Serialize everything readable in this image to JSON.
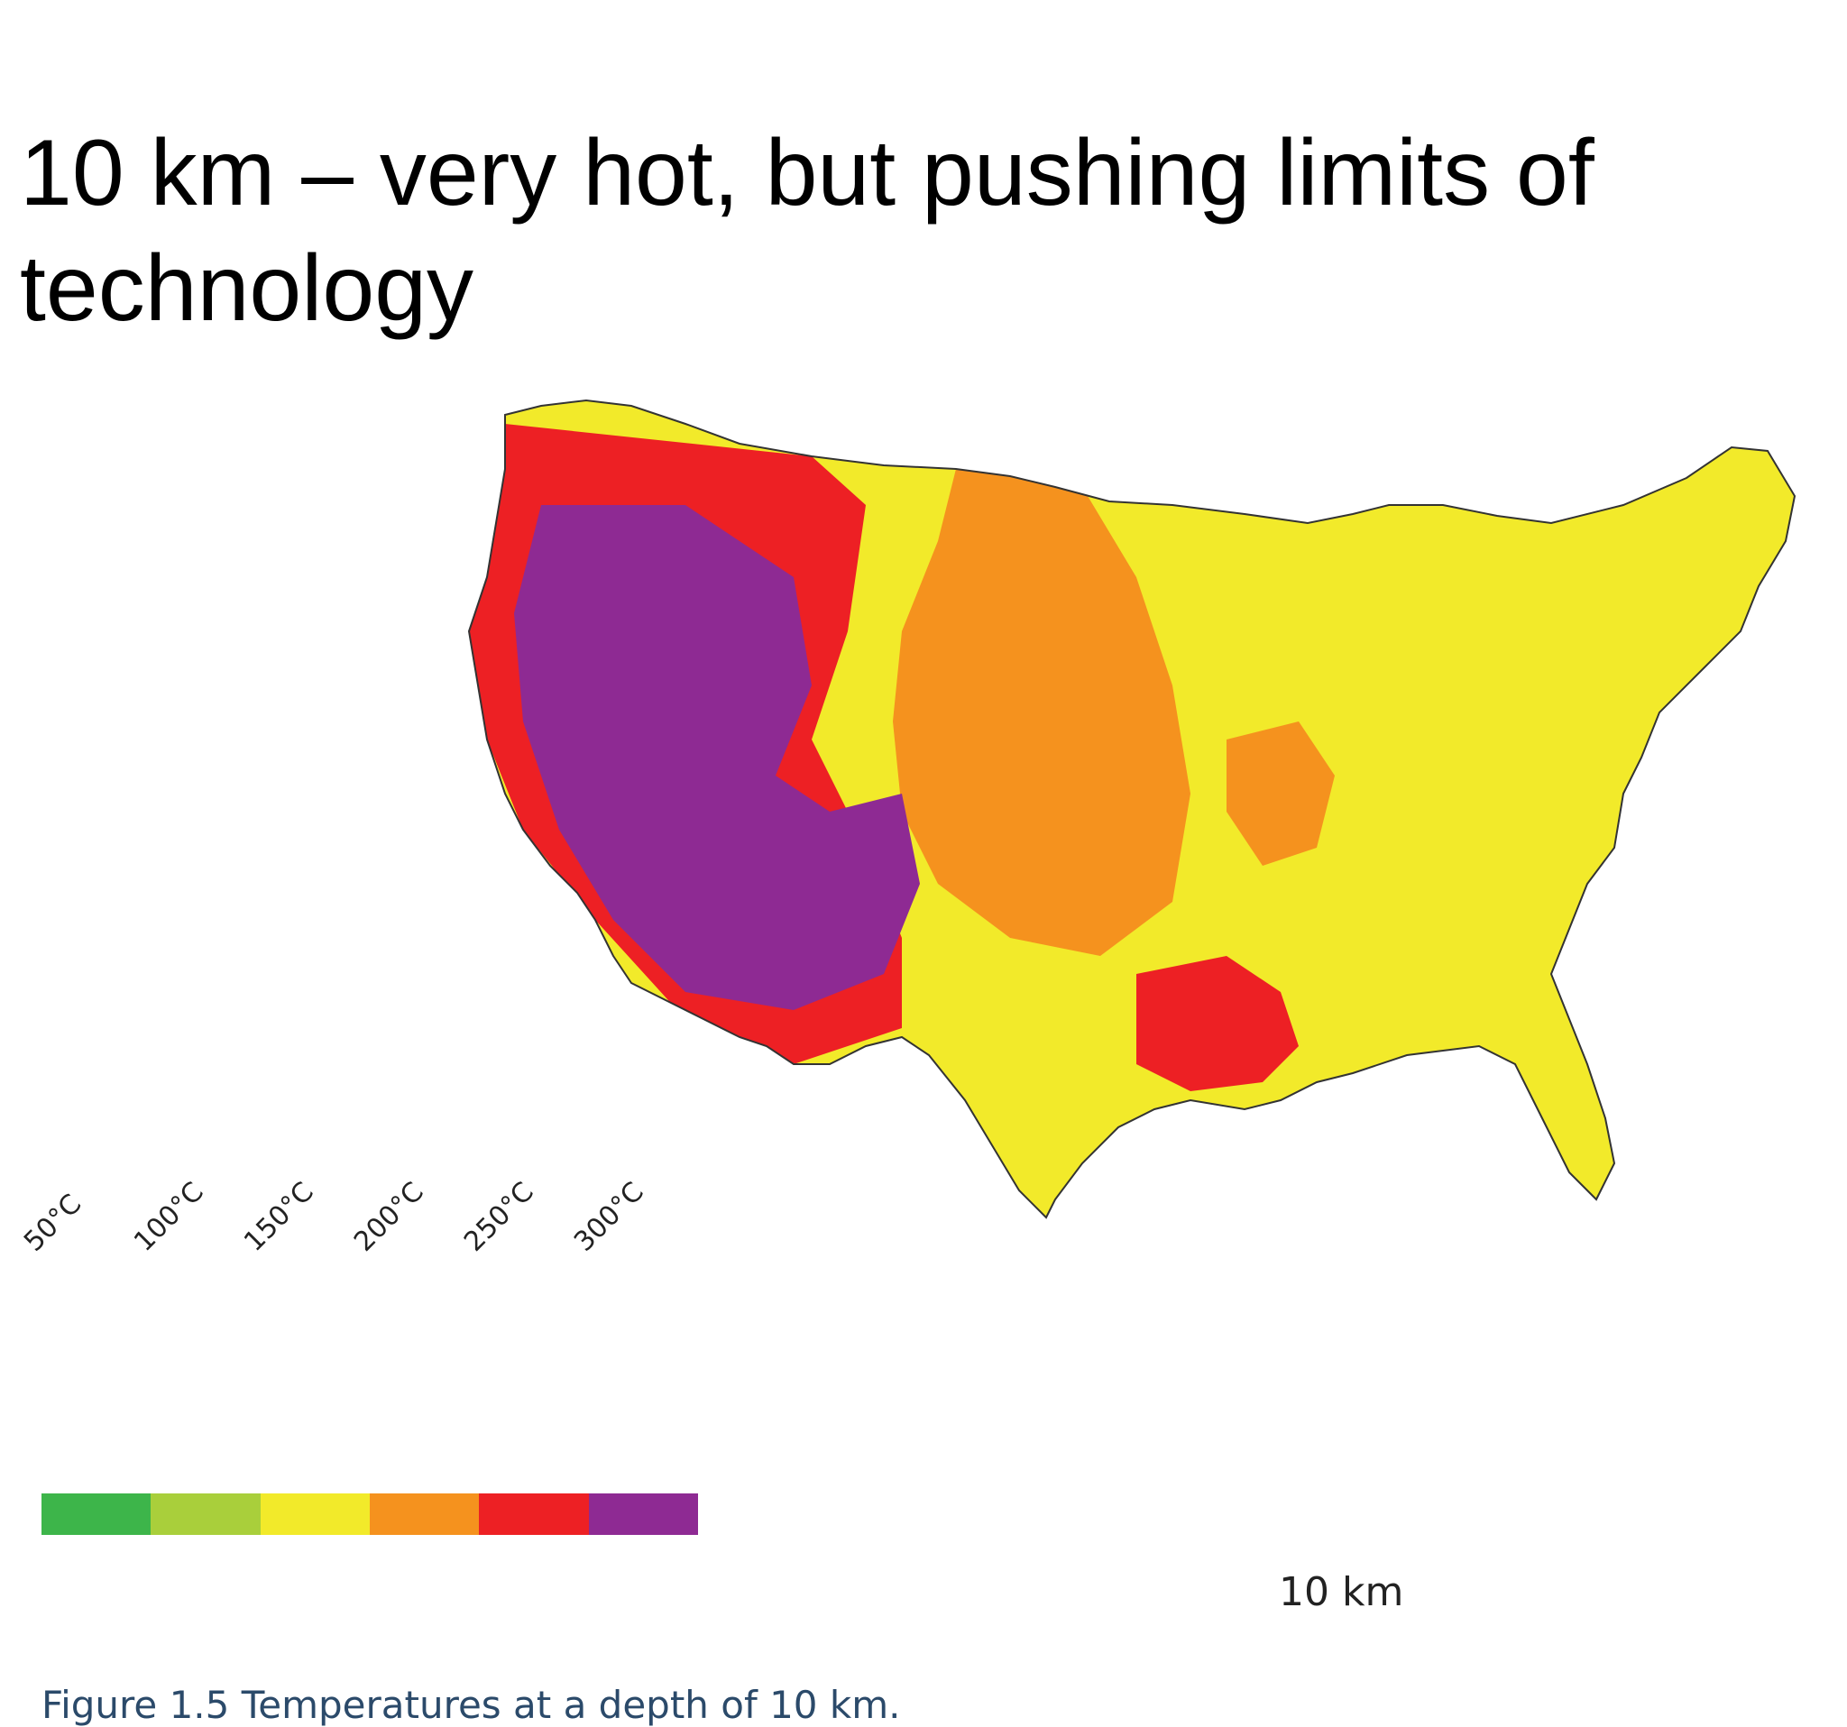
{
  "slide": {
    "title": "10 km – very hot, but pushing limits of technology"
  },
  "map": {
    "region": "contiguous United States",
    "depth_label": "10 km",
    "caption": "Figure 1.5 Temperatures at a depth of 10 km.",
    "legend": [
      {
        "label": "50°C",
        "color": "#3db54a"
      },
      {
        "label": "100°C",
        "color": "#a9cf3b"
      },
      {
        "label": "150°C",
        "color": "#f2ea2a"
      },
      {
        "label": "200°C",
        "color": "#f5921e"
      },
      {
        "label": "250°C",
        "color": "#ed2024"
      },
      {
        "label": "300°C",
        "color": "#8e2a93"
      }
    ]
  }
}
